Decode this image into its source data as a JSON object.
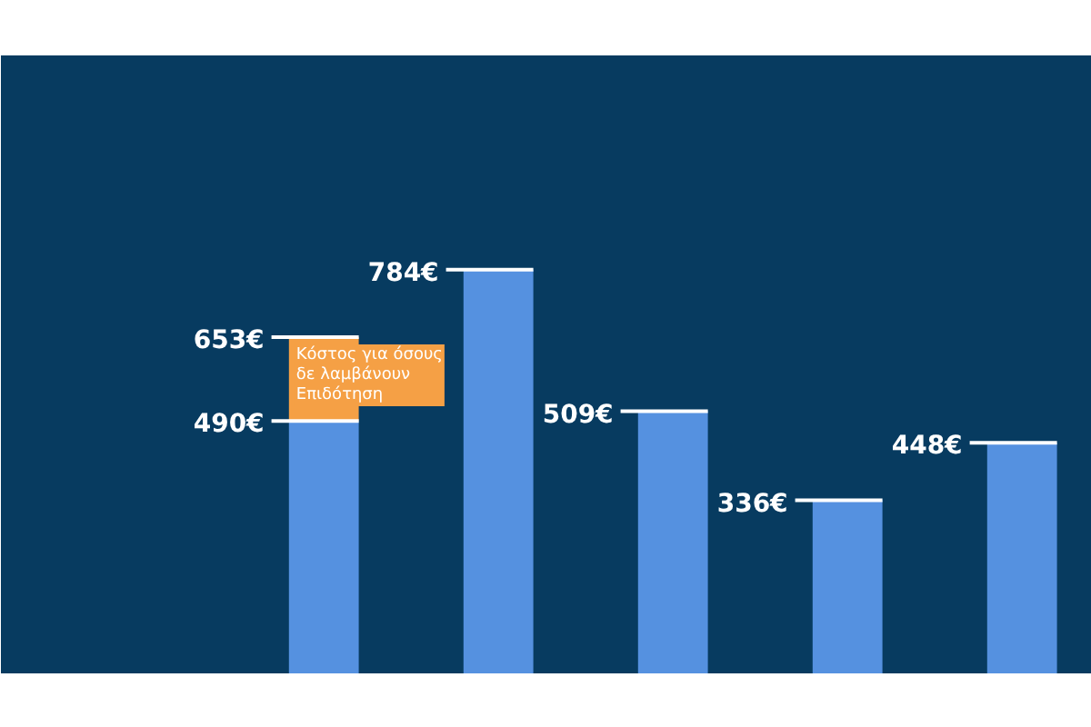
{
  "chart_data": {
    "type": "bar",
    "stacked": true,
    "categories": [
      null,
      null,
      null,
      null,
      null
    ],
    "ylim": [
      0,
      1200
    ],
    "tick_labels": false,
    "series": [
      {
        "color": "#5591e0",
        "values": [
          490,
          784,
          509,
          336,
          448
        ],
        "value_labels": [
          "490€",
          "784€",
          "509€",
          "336€",
          "448€"
        ]
      },
      {
        "name": "Κόστος για όσους δε λαμβάνουν Επιδότηση",
        "color": "#f5a045",
        "values": [
          163,
          null,
          null,
          null,
          null
        ]
      }
    ],
    "totals": [
      "653€",
      null,
      null,
      null,
      null
    ]
  }
}
